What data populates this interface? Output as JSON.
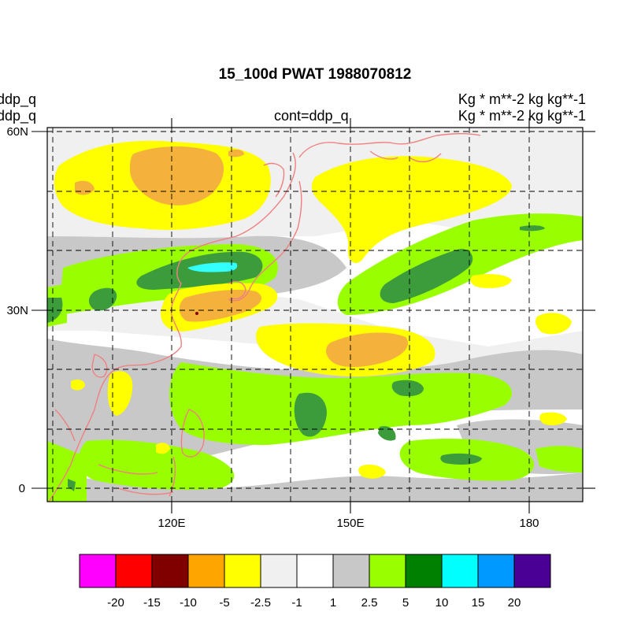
{
  "title": "15_100d PWAT  1988070812",
  "left_labels": [
    "ddp_q",
    "ddp_q"
  ],
  "center_label": "cont=ddp_q",
  "right_labels": [
    "Kg  * m**-2 kg kg**-1",
    "Kg  * m**-2 kg kg**-1"
  ],
  "map": {
    "lon_range": [
      98,
      188
    ],
    "lat_range": [
      -2,
      61
    ],
    "lat_ticks": [
      {
        "value": 60,
        "label": "60N"
      },
      {
        "value": 30,
        "label": "30N"
      },
      {
        "value": 0,
        "label": "0"
      }
    ],
    "lon_ticks": [
      {
        "value": 120,
        "label": "120E"
      },
      {
        "value": 150,
        "label": "150E"
      },
      {
        "value": 180,
        "label": "180"
      }
    ],
    "gridlines": "dashed every 10 degrees",
    "coastline_color": "#f08080"
  },
  "colorbar": {
    "colors": [
      "#ff00ff",
      "#ff0000",
      "#800000",
      "#ffa500",
      "#ffff00",
      "#f0f0f0",
      "#ffffff",
      "#c8c8c8",
      "#99ff00",
      "#008000",
      "#00ffff",
      "#0099ff",
      "#4b0095"
    ],
    "labels": [
      "-20",
      "-15",
      "-10",
      "-5",
      "-2.5",
      "-1",
      "1",
      "2.5",
      "5",
      "10",
      "15",
      "20"
    ]
  }
}
